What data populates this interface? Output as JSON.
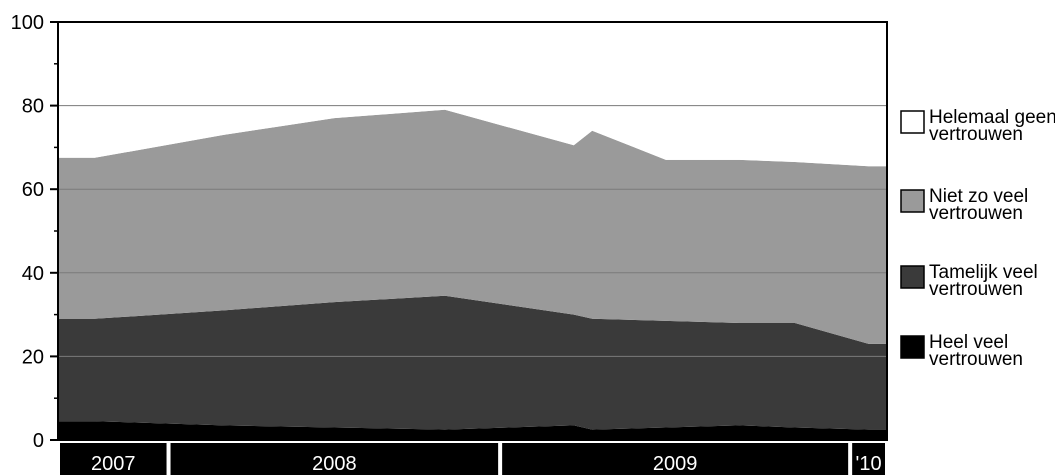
{
  "chart_data": {
    "type": "area",
    "stacked": true,
    "ylim": [
      0,
      100
    ],
    "yticks": [
      0,
      20,
      40,
      60,
      80,
      100
    ],
    "grid": true,
    "legend_position": "right",
    "x": [
      "2007-03",
      "2007-10",
      "2008-04",
      "2008-10",
      "2009-05",
      "2009-06",
      "2009-10",
      "2010-02",
      "2010-05",
      "2010-09"
    ],
    "x_axis": {
      "year_labels": [
        {
          "label": "2007",
          "start": "2007-01",
          "end": "2007-06"
        },
        {
          "label": "2008",
          "start": "2007-07",
          "end": "2008-12"
        },
        {
          "label": "2009",
          "start": "2009-01",
          "end": "2010-07"
        },
        {
          "label": "'10",
          "start": "2010-08",
          "end": "2010-09"
        }
      ]
    },
    "series": [
      {
        "name": "Heel veel vertrouwen",
        "color": "#000000",
        "values": [
          4.5,
          3.5,
          3,
          2.5,
          3.5,
          2.5,
          3,
          3.5,
          3,
          2.5
        ]
      },
      {
        "name": "Tamelijk veel vertrouwen",
        "color": "#3a3a3a",
        "values": [
          24.5,
          27.5,
          30,
          32,
          26.5,
          26.5,
          25.5,
          24.5,
          25,
          20.5
        ]
      },
      {
        "name": "Niet zo veel vertrouwen",
        "color": "#9a9a9a",
        "values": [
          38.5,
          42,
          44,
          44.5,
          40.5,
          45,
          38.5,
          39,
          38.5,
          42.5
        ]
      },
      {
        "name": "Helemaal geen vertrouwen",
        "color": "#ffffff",
        "values": [
          32.5,
          27,
          23,
          21,
          29.5,
          26,
          33,
          33,
          33.5,
          34.5
        ]
      }
    ],
    "legend": [
      {
        "line1": "Helemaal geen",
        "line2": "vertrouwen",
        "color": "#ffffff"
      },
      {
        "line1": "Niet zo veel",
        "line2": "vertrouwen",
        "color": "#9a9a9a"
      },
      {
        "line1": "Tamelijk veel",
        "line2": "vertrouwen",
        "color": "#3a3a3a"
      },
      {
        "line1": "Heel veel",
        "line2": "vertrouwen",
        "color": "#000000"
      }
    ]
  }
}
